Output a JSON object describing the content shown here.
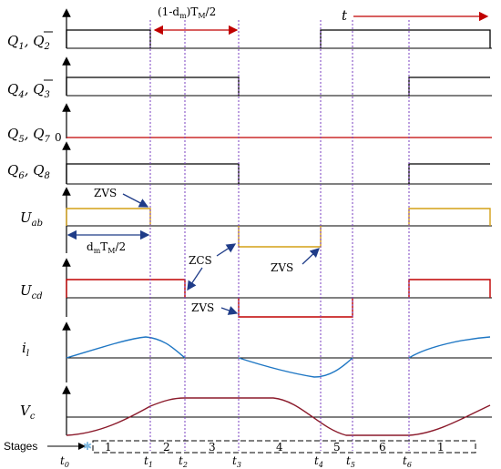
{
  "labels": {
    "q1": {
      "a": "Q",
      "a_sub": "1",
      "sep": ", ",
      "b": "Q",
      "b_sub": "2"
    },
    "q4": {
      "a": "Q",
      "a_sub": "4",
      "sep": ", ",
      "b": "Q",
      "b_sub": "3"
    },
    "q5": {
      "a": "Q",
      "a_sub": "5",
      "sep": ", ",
      "b": "Q",
      "b_sub": "7"
    },
    "q6": {
      "a": "Q",
      "a_sub": "6",
      "sep": ", ",
      "b": "Q",
      "b_sub": "8"
    },
    "uab": {
      "a": "U",
      "a_sub": "ab"
    },
    "ucd": {
      "a": "U",
      "a_sub": "cd"
    },
    "il": {
      "a": "i",
      "a_sub": "l"
    },
    "vc": {
      "a": "V",
      "a_sub": "c"
    },
    "zero": "0",
    "t": "t",
    "stages": "Stages"
  },
  "annotations": {
    "top_pre": "(1-d",
    "top_sub": "m",
    "top_mid": ")T",
    "top_sub2": "M",
    "top_post": "/2",
    "left_pre": "d",
    "left_sub": "m",
    "left_mid": "T",
    "left_sub2": "M",
    "left_post": "/2",
    "zvs1": "ZVS",
    "zcs": "ZCS",
    "zvs2": "ZVS",
    "zvs3": "ZVS"
  },
  "ticks": [
    {
      "t": "t",
      "sub": "0"
    },
    {
      "t": "t",
      "sub": "1"
    },
    {
      "t": "t",
      "sub": "2"
    },
    {
      "t": "t",
      "sub": "3"
    },
    {
      "t": "t",
      "sub": "4"
    },
    {
      "t": "t",
      "sub": "5"
    },
    {
      "t": "t",
      "sub": "6"
    }
  ],
  "stages": [
    "1",
    "2",
    "3",
    "4",
    "5",
    "6",
    "1"
  ],
  "colors": {
    "axis": "#000000",
    "gate": "#000000",
    "zero_line": "#c00000",
    "uab": "#d4a017",
    "ucd": "#c00000",
    "il": "#1f77c4",
    "vc": "#8b1a2b",
    "dotted": "#7a3fc0",
    "arrow_red": "#c00000",
    "arrow_blue": "#1f3c88"
  }
}
